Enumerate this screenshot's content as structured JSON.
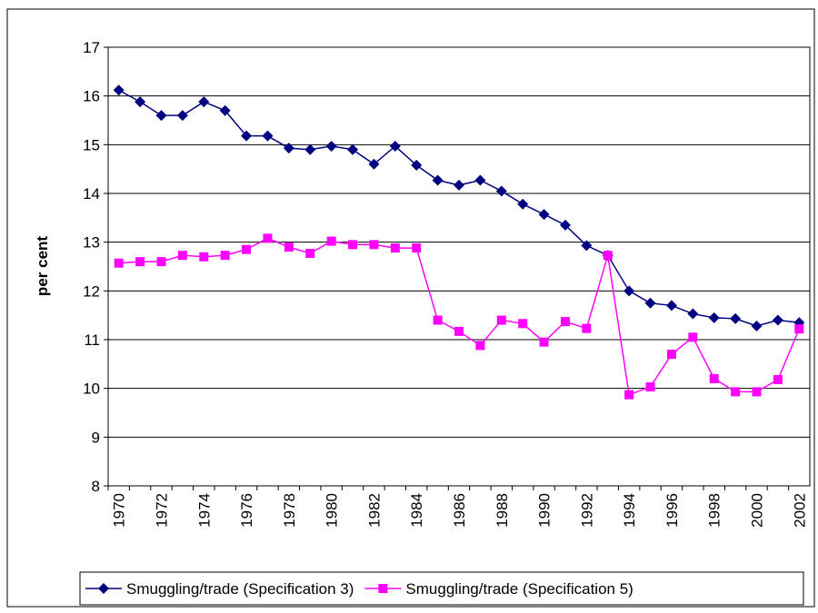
{
  "chart_data": {
    "type": "line",
    "y_label": "per cent",
    "categories": [
      "1970",
      null,
      "1972",
      null,
      "1974",
      null,
      "1976",
      null,
      "1978",
      null,
      "1980",
      null,
      "1982",
      null,
      "1984",
      null,
      "1986",
      null,
      "1988",
      null,
      "1990",
      null,
      "1992",
      null,
      "1994",
      null,
      "1996",
      null,
      "1998",
      null,
      "2000",
      null,
      "2002"
    ],
    "series": [
      {
        "name": "Smuggling/trade (Specification 3)",
        "color": "#000080",
        "marker": "diamond",
        "values": [
          16.12,
          15.88,
          15.6,
          15.6,
          15.88,
          15.7,
          15.18,
          15.18,
          14.93,
          14.9,
          14.97,
          14.9,
          14.6,
          14.97,
          14.58,
          14.27,
          14.17,
          14.27,
          14.05,
          13.78,
          13.57,
          13.35,
          12.93,
          12.73,
          12.0,
          11.75,
          11.7,
          11.53,
          11.45,
          11.43,
          11.28,
          11.4,
          11.35
        ]
      },
      {
        "name": "Smuggling/trade (Specification 5)",
        "color": "#ff00ff",
        "marker": "square",
        "values": [
          12.57,
          12.6,
          12.6,
          12.73,
          12.7,
          12.73,
          12.85,
          13.08,
          12.9,
          12.77,
          13.02,
          12.95,
          12.95,
          12.88,
          12.88,
          11.4,
          11.17,
          10.88,
          11.4,
          11.33,
          10.95,
          11.37,
          11.23,
          12.73,
          9.87,
          10.03,
          10.7,
          11.05,
          10.2,
          9.93,
          9.93,
          10.18,
          11.22
        ]
      }
    ],
    "ylim": [
      8,
      17
    ],
    "yticks": [
      8,
      9,
      10,
      11,
      12,
      13,
      14,
      15,
      16,
      17
    ],
    "grid": true,
    "legend": "bottom"
  }
}
